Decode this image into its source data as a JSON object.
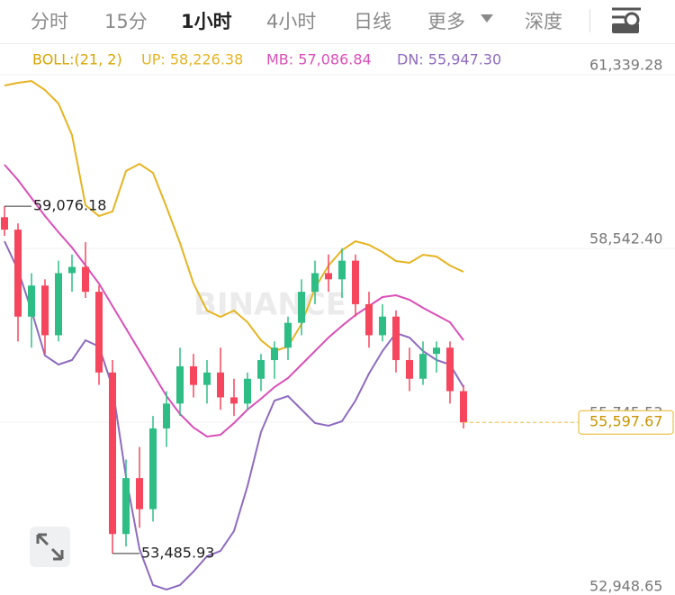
{
  "header": {
    "tabs": [
      "分时",
      "15分",
      "1小时",
      "4小时",
      "日线",
      "更多",
      "深度"
    ],
    "active_tab": 2
  },
  "chart_data": {
    "type": "candlestick",
    "title": "BOLL:(21, 2)",
    "watermark": "BINANCE",
    "up_color": "#2ebd85",
    "down_color": "#f6465d",
    "grid": true,
    "ylim": [
      52948.65,
      61339.28
    ],
    "yticks": [
      {
        "value": 52948.65,
        "label": "52,948.65"
      },
      {
        "value": 55745.53,
        "label": "55,745.53"
      },
      {
        "value": 58542.4,
        "label": "58,542.40"
      },
      {
        "value": 61339.28,
        "label": "61,339.28"
      }
    ],
    "open": [
      58900,
      58700,
      57300,
      57800,
      57000,
      58000,
      58100,
      57700,
      56400,
      53800,
      54700,
      54200,
      55500,
      55900,
      56500,
      56200,
      56400,
      56000,
      55900,
      56300,
      56600,
      56800,
      57200,
      57700,
      58000,
      57900,
      58200,
      57500,
      57000,
      57300,
      56600,
      56300,
      56700,
      56800,
      56100
    ],
    "high": [
      59076.18,
      58800,
      58000,
      57900,
      58200,
      58300,
      58500,
      57800,
      56600,
      55000,
      55200,
      55700,
      56100,
      56800,
      56700,
      56600,
      56800,
      56300,
      56400,
      56700,
      56900,
      57300,
      57900,
      58200,
      58300,
      58400,
      58300,
      57700,
      57500,
      57400,
      56800,
      56900,
      56900,
      56900,
      56200
    ],
    "low": [
      58600,
      56900,
      56800,
      56700,
      56900,
      57700,
      57600,
      56200,
      53485.93,
      53600,
      53900,
      54000,
      55200,
      55700,
      56000,
      55900,
      55800,
      55700,
      55800,
      56100,
      56300,
      56600,
      57000,
      57500,
      57700,
      57600,
      57300,
      56800,
      56900,
      56400,
      56100,
      56200,
      56400,
      55900,
      55500
    ],
    "close": [
      58700,
      57300,
      57800,
      57000,
      58000,
      58100,
      57700,
      56400,
      53800,
      54700,
      54200,
      55500,
      55900,
      56500,
      56200,
      56400,
      56000,
      55900,
      56300,
      56600,
      56800,
      57200,
      57700,
      58000,
      57900,
      58200,
      57500,
      57000,
      57300,
      56600,
      56300,
      56700,
      56800,
      56100,
      55597.67
    ],
    "series": [
      {
        "name": "UP: 58,226.38",
        "color": "#e6b422",
        "values": [
          61020,
          61064,
          61093,
          60948,
          60730,
          60223,
          59093,
          58919,
          58992,
          59644,
          59760,
          59615,
          59064,
          58484,
          57832,
          57398,
          57296,
          57398,
          57209,
          56920,
          56746,
          56818,
          57180,
          57760,
          58122,
          58369,
          58513,
          58455,
          58340,
          58195,
          58166,
          58296,
          58267,
          58122,
          58021
        ]
      },
      {
        "name": "MB: 57,086.84",
        "color": "#d94fb8",
        "values": [
          59745,
          59499,
          59209,
          58919,
          58658,
          58412,
          58122,
          57832,
          57470,
          57108,
          56746,
          56383,
          56021,
          55731,
          55514,
          55369,
          55398,
          55586,
          55804,
          55978,
          56166,
          56311,
          56528,
          56746,
          56963,
          57151,
          57325,
          57470,
          57615,
          57644,
          57572,
          57441,
          57325,
          57209,
          56920
        ]
      },
      {
        "name": "DN: 55,947.30",
        "color": "#8e6bbf",
        "values": [
          58513,
          58050,
          57398,
          56673,
          56528,
          56601,
          56920,
          56818,
          56166,
          54717,
          53558,
          52978,
          52906,
          52978,
          53196,
          53442,
          53529,
          53848,
          54572,
          55442,
          55949,
          56021,
          55804,
          55586,
          55543,
          55615,
          55949,
          56383,
          56746,
          57035,
          56963,
          56746,
          56601,
          56528,
          56166
        ]
      }
    ],
    "annotations": {
      "high": {
        "value": 59076.18,
        "label": "59,076.18"
      },
      "low": {
        "value": 53485.93,
        "label": "53,485.93"
      },
      "last_price": {
        "value": 55597.67,
        "label": "55,597.67"
      }
    }
  }
}
